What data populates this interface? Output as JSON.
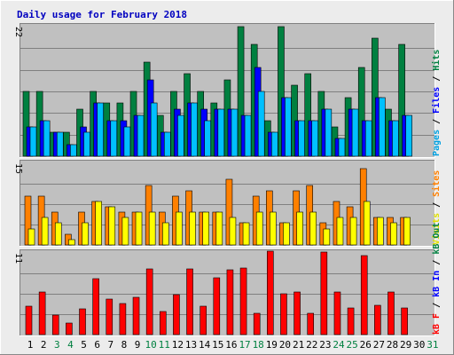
{
  "chart_data": {
    "type": "bar",
    "title": "Daily usage for February 2018",
    "categories": [
      "1",
      "2",
      "3",
      "4",
      "5",
      "6",
      "7",
      "8",
      "9",
      "10",
      "11",
      "12",
      "13",
      "14",
      "15",
      "16",
      "17",
      "18",
      "19",
      "20",
      "21",
      "22",
      "23",
      "24",
      "25",
      "26",
      "27",
      "28",
      "29",
      "30",
      "31"
    ],
    "weekend_days": [
      "3",
      "4",
      "10",
      "11",
      "17",
      "18",
      "24",
      "25",
      "31"
    ],
    "grid": true,
    "panels": [
      {
        "name": "top",
        "scale_label": "22",
        "ymax": 22,
        "right_labels": [
          {
            "text": "Pages",
            "color": "#00a0e0"
          },
          {
            "text": " / ",
            "color": "#000000"
          },
          {
            "text": "Files",
            "color": "#0000ff"
          },
          {
            "text": " / ",
            "color": "#000000"
          },
          {
            "text": "Hits",
            "color": "#008040"
          }
        ],
        "series": [
          {
            "id": "hits",
            "color": "#008040",
            "values": [
              11,
              11,
              4,
              4,
              8,
              11,
              9,
              9,
              11,
              16,
              7,
              11,
              14,
              11,
              9,
              13,
              22,
              19,
              6,
              22,
              12,
              14,
              11,
              5,
              10,
              15,
              20,
              8,
              19,
              0,
              0
            ]
          },
          {
            "id": "files",
            "color": "#0000ff",
            "values": [
              5,
              6,
              4,
              2,
              5,
              9,
              6,
              6,
              7,
              13,
              4,
              8,
              9,
              8,
              8,
              8,
              7,
              15,
              4,
              10,
              6,
              6,
              8,
              3,
              8,
              6,
              10,
              6,
              7,
              0,
              0
            ]
          },
          {
            "id": "pages",
            "color": "#00c0ff",
            "values": [
              5,
              6,
              4,
              2,
              4,
              9,
              6,
              5,
              7,
              9,
              4,
              7,
              9,
              6,
              8,
              8,
              7,
              11,
              4,
              10,
              6,
              6,
              8,
              3,
              8,
              6,
              10,
              6,
              7,
              0,
              0
            ]
          }
        ]
      },
      {
        "name": "middle",
        "scale_label": "15",
        "ymax": 15,
        "right_labels": [
          {
            "text": "Visits",
            "color": "#e0e000"
          },
          {
            "text": " / ",
            "color": "#000000"
          },
          {
            "text": "Sites",
            "color": "#ff8000"
          }
        ],
        "series": [
          {
            "id": "sites",
            "color": "#ff8000",
            "values": [
              9,
              9,
              6,
              2,
              6,
              8,
              7,
              6,
              6,
              11,
              6,
              9,
              10,
              6,
              6,
              12,
              4,
              9,
              10,
              4,
              10,
              11,
              4,
              8,
              7,
              14,
              5,
              5,
              5,
              0,
              0
            ]
          },
          {
            "id": "visits",
            "color": "#ffff00",
            "values": [
              3,
              5,
              4,
              1,
              4,
              8,
              7,
              5,
              6,
              6,
              4,
              6,
              6,
              6,
              6,
              5,
              4,
              6,
              6,
              4,
              6,
              6,
              3,
              5,
              5,
              8,
              5,
              4,
              5,
              0,
              0
            ]
          }
        ]
      },
      {
        "name": "bottom",
        "scale_label": "11",
        "ymax": 11,
        "right_labels": [
          {
            "text": "kB F",
            "color": "#ff0000"
          },
          {
            "text": " / ",
            "color": "#000000"
          },
          {
            "text": "kB In",
            "color": "#0000ff"
          },
          {
            "text": " / ",
            "color": "#000000"
          },
          {
            "text": "kB Out",
            "color": "#008040"
          }
        ],
        "series": [
          {
            "id": "kbf",
            "color": "#ff0000",
            "values": [
              3.8,
              5.7,
              2.6,
              1.5,
              3.5,
              7.5,
              4.8,
              4.2,
              5.0,
              8.9,
              3.1,
              5.4,
              8.8,
              3.8,
              7.6,
              8.7,
              9.0,
              2.9,
              11.2,
              5.5,
              5.7,
              2.9,
              11.1,
              5.7,
              3.6,
              10.6,
              4.0,
              5.7,
              3.6,
              0,
              0
            ]
          }
        ]
      }
    ]
  }
}
